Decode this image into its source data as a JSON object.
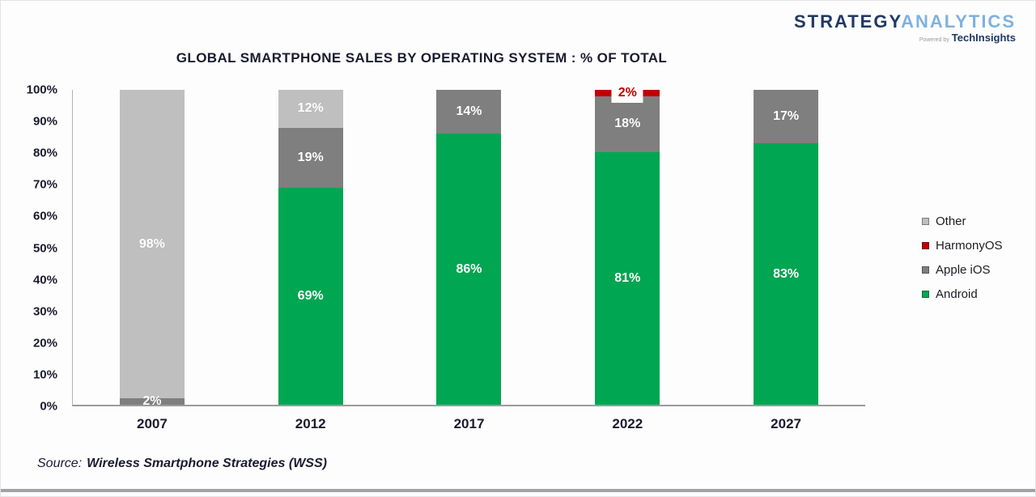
{
  "header": {
    "brand_primary": "STRATEGY",
    "brand_secondary": "ANALYTICS",
    "powered_by": "Powered by",
    "powered_brand": "TechInsights"
  },
  "chart_data": {
    "type": "bar",
    "stacked": true,
    "title": "GLOBAL SMARTPHONE SALES BY OPERATING SYSTEM : % OF TOTAL",
    "categories": [
      "2007",
      "2012",
      "2017",
      "2022",
      "2027"
    ],
    "series": [
      {
        "name": "Android",
        "color": "#00a651",
        "label_color": "#ffffff",
        "callout": false,
        "values": [
          0,
          69,
          86,
          81,
          83
        ]
      },
      {
        "name": "Apple iOS",
        "color": "#7f7f7f",
        "label_color": "#ffffff",
        "callout": false,
        "values": [
          2,
          19,
          14,
          18,
          17
        ]
      },
      {
        "name": "HarmonyOS",
        "color": "#c00000",
        "label_color": "#c00000",
        "callout": true,
        "values": [
          0,
          0,
          0,
          2,
          0
        ]
      },
      {
        "name": "Other",
        "color": "#bfbfbf",
        "label_color": "#ffffff",
        "callout": false,
        "values": [
          98,
          12,
          0,
          0,
          0
        ]
      }
    ],
    "unit": "%",
    "ylim": [
      0,
      100
    ],
    "yticks": [
      "100%",
      "90%",
      "80%",
      "70%",
      "60%",
      "50%",
      "40%",
      "30%",
      "20%",
      "10%",
      "0%"
    ],
    "grid": false,
    "legend_position": "right",
    "legend": [
      {
        "label": "Other",
        "color": "#bfbfbf"
      },
      {
        "label": "HarmonyOS",
        "color": "#c00000"
      },
      {
        "label": "Apple iOS",
        "color": "#7f7f7f"
      },
      {
        "label": "Android",
        "color": "#00a651"
      }
    ]
  },
  "footer": {
    "source_prefix": "Source:",
    "source_text": "Wireless Smartphone Strategies (WSS)"
  }
}
